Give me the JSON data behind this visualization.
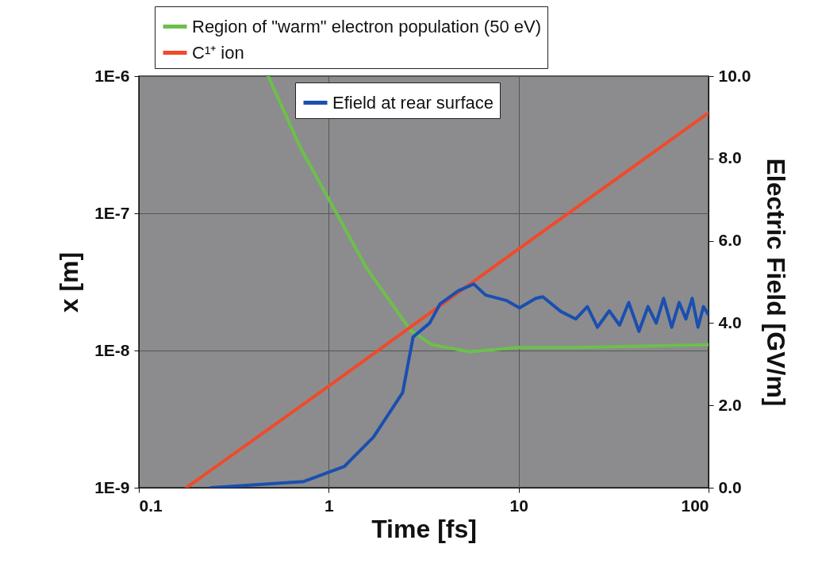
{
  "chart_data": {
    "type": "line",
    "xlabel": "Time [fs]",
    "ylabel": "x [m]",
    "y2label": "Electric Field [GV/m]",
    "log": "xy",
    "grid": true,
    "legend": "top",
    "line_style": "solid",
    "marker": "none",
    "xlim": [
      0.1,
      100
    ],
    "xticks": [
      0.1,
      1,
      10,
      100
    ],
    "ylim": [
      1e-09,
      1e-06
    ],
    "yticks": [
      {
        "value": 1e-09,
        "label": "1E-9"
      },
      {
        "value": 1e-08,
        "label": "1E-8"
      },
      {
        "value": 1e-07,
        "label": "1E-7"
      },
      {
        "value": 1e-06,
        "label": "1E-6"
      }
    ],
    "y2lim": [
      0,
      10
    ],
    "y2ticks": [
      {
        "value": 0,
        "label": "0.0"
      },
      {
        "value": 2,
        "label": "2.0"
      },
      {
        "value": 4,
        "label": "4.0"
      },
      {
        "value": 6,
        "label": "6.0"
      },
      {
        "value": 8,
        "label": "8.0"
      },
      {
        "value": 10,
        "label": "10.0"
      }
    ],
    "series": [
      {
        "name": "Region of \"warm\" electron population (50 eV)",
        "color": "#6cc04a",
        "x": [
          0.48,
          0.71,
          1.1,
          1.58,
          2.7,
          3.5,
          5.5,
          10,
          20,
          50,
          100
        ],
        "values": [
          1e-06,
          3e-07,
          1e-07,
          4e-08,
          1.4e-08,
          1.1e-08,
          9.8e-09,
          1.05e-08,
          1.05e-08,
          1.08e-08,
          1.1e-08
        ]
      },
      {
        "name": "C¹⁺ ion",
        "color": "#f04a2a",
        "x": [
          0.178,
          1,
          10,
          100
        ],
        "values": [
          1e-09,
          5.5e-09,
          5.5e-08,
          5.4e-07
        ]
      },
      {
        "name": "Efield at rear surface",
        "color": "#1a4fb0",
        "axis": "y2",
        "x": [
          0.24,
          0.74,
          1.21,
          1.72,
          2.45,
          2.78,
          3.4,
          3.86,
          4.8,
          5.8,
          6.7,
          8.6,
          10.1,
          12.3,
          13.4,
          16.7,
          20,
          23,
          26,
          30,
          34,
          38,
          43,
          48,
          53,
          58,
          64,
          70,
          76,
          82,
          88,
          94,
          100
        ],
        "values": [
          0,
          0.15,
          0.52,
          1.23,
          2.31,
          3.66,
          4.0,
          4.47,
          4.78,
          4.95,
          4.68,
          4.55,
          4.37,
          4.6,
          4.64,
          4.28,
          4.1,
          4.4,
          3.9,
          4.3,
          3.95,
          4.5,
          3.8,
          4.4,
          4.0,
          4.6,
          3.9,
          4.5,
          4.1,
          4.6,
          3.9,
          4.4,
          4.2
        ]
      }
    ]
  }
}
